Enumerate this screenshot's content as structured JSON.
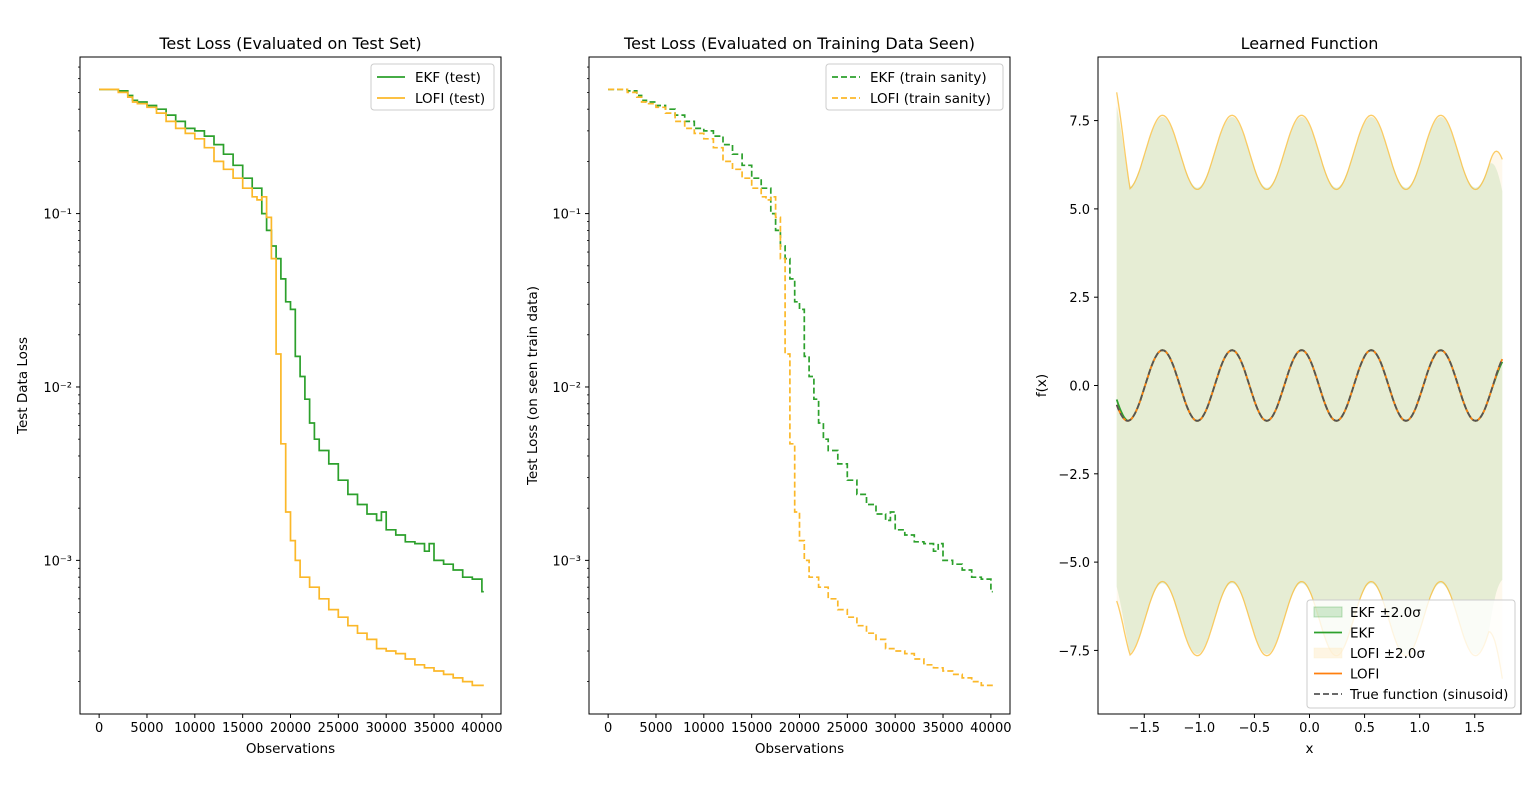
{
  "chart_data": [
    {
      "type": "line",
      "title": "Test Loss (Evaluated on Test Set)",
      "xlabel": "Observations",
      "ylabel": "Test Data Loss",
      "yscale": "log",
      "xlim": [
        -2000,
        42000
      ],
      "ylim": [
        0.00013,
        0.8
      ],
      "xticks": [
        0,
        5000,
        10000,
        15000,
        20000,
        25000,
        30000,
        35000,
        40000
      ],
      "xtick_labels": [
        "0",
        "5000",
        "10000",
        "15000",
        "20000",
        "25000",
        "30000",
        "35000",
        "40000"
      ],
      "yticks": [
        0.1,
        0.01,
        0.001
      ],
      "ytick_labels": [
        "10⁻¹",
        "10⁻²",
        "10⁻³"
      ],
      "legend_position": "top-right",
      "series": [
        {
          "name": "EKF (test)",
          "color": "#2ca02c",
          "dash": "solid",
          "x": [
            0,
            1000,
            2000,
            3000,
            3500,
            4000,
            5000,
            6000,
            7000,
            8000,
            9000,
            10000,
            11000,
            12000,
            13000,
            14000,
            15000,
            16000,
            17000,
            17500,
            18000,
            18500,
            19000,
            19500,
            20000,
            20500,
            21000,
            21500,
            22000,
            22500,
            23000,
            24000,
            25000,
            26000,
            27000,
            28000,
            29000,
            29500,
            30000,
            31000,
            32000,
            33000,
            34000,
            34500,
            35000,
            36000,
            37000,
            38000,
            39000,
            40000
          ],
          "y": [
            0.52,
            0.52,
            0.51,
            0.48,
            0.45,
            0.44,
            0.42,
            0.4,
            0.37,
            0.34,
            0.31,
            0.3,
            0.28,
            0.25,
            0.22,
            0.19,
            0.16,
            0.14,
            0.1,
            0.08,
            0.065,
            0.055,
            0.042,
            0.031,
            0.028,
            0.015,
            0.0115,
            0.0085,
            0.0062,
            0.005,
            0.0043,
            0.0036,
            0.0029,
            0.0024,
            0.0021,
            0.00185,
            0.0017,
            0.0019,
            0.0015,
            0.0014,
            0.00128,
            0.00125,
            0.00113,
            0.00125,
            0.001,
            0.00095,
            0.00088,
            0.0008,
            0.00078,
            0.00066
          ]
        },
        {
          "name": "LOFI (test)",
          "color": "#fbb829",
          "dash": "solid",
          "x": [
            0,
            1000,
            2000,
            3000,
            3500,
            4000,
            5000,
            6000,
            7000,
            8000,
            9000,
            10000,
            11000,
            12000,
            13000,
            14000,
            15000,
            16000,
            16500,
            17000,
            17500,
            18000,
            18500,
            19000,
            19500,
            20000,
            20500,
            21000,
            22000,
            23000,
            24000,
            25000,
            26000,
            27000,
            28000,
            29000,
            30000,
            31000,
            32000,
            33000,
            34000,
            35000,
            36000,
            37000,
            38000,
            39000,
            40000
          ],
          "y": [
            0.52,
            0.52,
            0.5,
            0.47,
            0.44,
            0.43,
            0.41,
            0.38,
            0.34,
            0.31,
            0.29,
            0.27,
            0.24,
            0.2,
            0.18,
            0.16,
            0.14,
            0.125,
            0.12,
            0.125,
            0.095,
            0.055,
            0.0155,
            0.0047,
            0.0019,
            0.0013,
            0.001,
            0.0008,
            0.0007,
            0.0006,
            0.00052,
            0.00047,
            0.00042,
            0.00038,
            0.00035,
            0.00031,
            0.0003,
            0.00029,
            0.00027,
            0.00025,
            0.00024,
            0.00023,
            0.00022,
            0.00021,
            0.0002,
            0.00019,
            0.00019
          ]
        }
      ]
    },
    {
      "type": "line",
      "title": "Test Loss (Evaluated on Training Data Seen)",
      "xlabel": "Observations",
      "ylabel": "Test Loss (on seen train data)",
      "yscale": "log",
      "xlim": [
        -2000,
        42000
      ],
      "ylim": [
        0.00013,
        0.8
      ],
      "xticks": [
        0,
        5000,
        10000,
        15000,
        20000,
        25000,
        30000,
        35000,
        40000
      ],
      "xtick_labels": [
        "0",
        "5000",
        "10000",
        "15000",
        "20000",
        "25000",
        "30000",
        "35000",
        "40000"
      ],
      "yticks": [
        0.1,
        0.01,
        0.001
      ],
      "ytick_labels": [
        "10⁻¹",
        "10⁻²",
        "10⁻³"
      ],
      "legend_position": "top-right",
      "series": [
        {
          "name": "EKF (train sanity)",
          "color": "#2ca02c",
          "dash": "dashed",
          "x": [
            0,
            1000,
            2000,
            3000,
            3500,
            4000,
            5000,
            6000,
            7000,
            8000,
            9000,
            10000,
            11000,
            12000,
            13000,
            14000,
            15000,
            16000,
            17000,
            17500,
            18000,
            18500,
            19000,
            19500,
            20000,
            20500,
            21000,
            21500,
            22000,
            22500,
            23000,
            24000,
            25000,
            26000,
            27000,
            28000,
            29000,
            29500,
            30000,
            31000,
            32000,
            33000,
            34000,
            34500,
            35000,
            36000,
            37000,
            38000,
            39000,
            40000
          ],
          "y": [
            0.52,
            0.52,
            0.51,
            0.48,
            0.45,
            0.44,
            0.42,
            0.4,
            0.37,
            0.34,
            0.31,
            0.3,
            0.28,
            0.25,
            0.22,
            0.19,
            0.16,
            0.14,
            0.1,
            0.08,
            0.065,
            0.055,
            0.042,
            0.031,
            0.028,
            0.015,
            0.0115,
            0.0085,
            0.0062,
            0.005,
            0.0043,
            0.0036,
            0.0029,
            0.0024,
            0.0021,
            0.00185,
            0.0017,
            0.0019,
            0.0015,
            0.0014,
            0.00128,
            0.00125,
            0.00113,
            0.00125,
            0.001,
            0.00095,
            0.00088,
            0.0008,
            0.00078,
            0.00066
          ]
        },
        {
          "name": "LOFI (train sanity)",
          "color": "#fbb829",
          "dash": "dashed",
          "x": [
            0,
            1000,
            2000,
            3000,
            3500,
            4000,
            5000,
            6000,
            7000,
            8000,
            9000,
            10000,
            11000,
            12000,
            13000,
            14000,
            15000,
            16000,
            16500,
            17000,
            17500,
            18000,
            18500,
            19000,
            19500,
            20000,
            20500,
            21000,
            22000,
            23000,
            24000,
            25000,
            26000,
            27000,
            28000,
            29000,
            30000,
            31000,
            32000,
            33000,
            34000,
            35000,
            36000,
            37000,
            38000,
            39000,
            40000
          ],
          "y": [
            0.52,
            0.52,
            0.5,
            0.47,
            0.44,
            0.43,
            0.41,
            0.38,
            0.34,
            0.31,
            0.29,
            0.27,
            0.24,
            0.2,
            0.18,
            0.16,
            0.14,
            0.125,
            0.12,
            0.125,
            0.095,
            0.055,
            0.0155,
            0.0047,
            0.0019,
            0.0013,
            0.001,
            0.0008,
            0.0007,
            0.0006,
            0.00052,
            0.00047,
            0.00042,
            0.00038,
            0.00035,
            0.00031,
            0.0003,
            0.00029,
            0.00027,
            0.00025,
            0.00024,
            0.00023,
            0.00022,
            0.00021,
            0.0002,
            0.00019,
            0.00019
          ]
        }
      ]
    },
    {
      "type": "area",
      "title": "Learned Function",
      "xlabel": "x",
      "ylabel": "f(x)",
      "xlim": [
        -1.92,
        1.92
      ],
      "ylim": [
        -9.3,
        9.3
      ],
      "xticks": [
        -1.5,
        -1.0,
        -0.5,
        0.0,
        0.5,
        1.0,
        1.5
      ],
      "xtick_labels": [
        "−1.5",
        "−1.0",
        "−0.5",
        "0.0",
        "0.5",
        "1.0",
        "1.5"
      ],
      "yticks": [
        7.5,
        5.0,
        2.5,
        0.0,
        -2.5,
        -5.0,
        -7.5
      ],
      "ytick_labels": [
        "7.5",
        "5.0",
        "2.5",
        "0.0",
        "−2.5",
        "−5.0",
        "−7.5"
      ],
      "legend_position": "bottom-right",
      "function": {
        "x_range": [
          -1.75,
          1.75
        ],
        "frequency_rad": 9.95,
        "phase_rad": -4.0,
        "amplitude": 1.0,
        "ekf_band": {
          "base": 6.6,
          "amplitude": 1.0,
          "left_edge_value": 7.9,
          "right_edge_value": 5.5
        },
        "lofi_band": {
          "base": 6.6,
          "amplitude": 1.05,
          "left_edge_upper": 8.3,
          "right_edge_upper": 6.4
        }
      },
      "series": [
        {
          "name": "EKF ±2.0σ",
          "kind": "band",
          "color": "#2ca02c"
        },
        {
          "name": "EKF",
          "kind": "line",
          "color": "#2ca02c"
        },
        {
          "name": "LOFI ±2.0σ",
          "kind": "band",
          "color": "#fdebc8"
        },
        {
          "name": "LOFI",
          "kind": "line",
          "color": "#ff7f0e"
        },
        {
          "name": "True function (sinusoid)",
          "kind": "line",
          "color": "#555555",
          "dash": "dashed"
        }
      ]
    }
  ]
}
